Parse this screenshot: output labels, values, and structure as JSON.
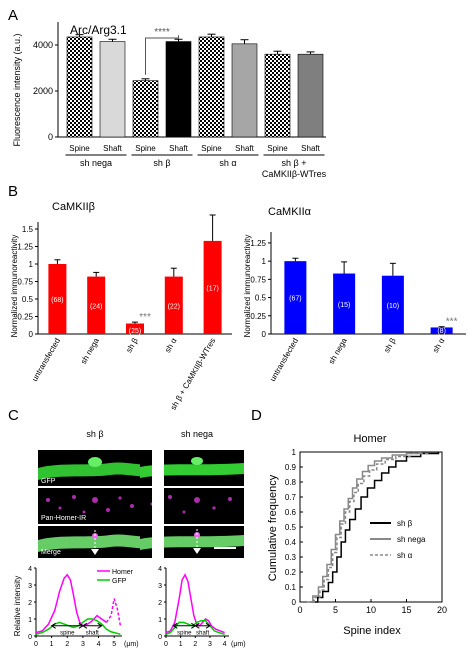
{
  "panel_letters": [
    "A",
    "B",
    "C",
    "D"
  ],
  "chart_data": [
    {
      "id": "A",
      "type": "bar",
      "title": "Arc/Arg3.1",
      "ylabel": "Fluorescence intensity (a.u.)",
      "ylim": [
        0,
        5000
      ],
      "yticks": [
        0,
        2000,
        4000
      ],
      "categories": [
        "Spine",
        "Shaft",
        "Spine",
        "Shaft",
        "Spine",
        "Shaft",
        "Spine",
        "Shaft"
      ],
      "values": [
        4350,
        4150,
        2450,
        4150,
        4350,
        4050,
        3600,
        3600
      ],
      "errors": [
        100,
        100,
        80,
        100,
        120,
        180,
        130,
        100
      ],
      "patterns": [
        "checker",
        "solid",
        "checker",
        "solid",
        "checker",
        "solid",
        "checker",
        "solid"
      ],
      "colors": [
        "#000000",
        "#d9d9d9",
        "#000000",
        "#000000",
        "#000000",
        "#a6a6a6",
        "#000000",
        "#7f7f7f"
      ],
      "groups": [
        {
          "label": "sh nega",
          "members": [
            0,
            1
          ]
        },
        {
          "label": "sh β",
          "members": [
            2,
            3
          ]
        },
        {
          "label": "sh α",
          "members": [
            4,
            5
          ]
        },
        {
          "label": "sh β +",
          "label2": "CaMKIIβ-WTres",
          "members": [
            6,
            7
          ]
        }
      ],
      "significance": {
        "label": "****",
        "between": [
          2,
          3
        ]
      }
    },
    {
      "id": "B-left",
      "type": "bar",
      "title": "CaMKIIβ",
      "ylabel": "Normalized immunoreactivity",
      "ylim": [
        0,
        1.6
      ],
      "yticks": [
        0,
        0.25,
        0.5,
        0.75,
        1,
        1.25,
        1.5
      ],
      "ytick_labels": [
        "0",
        "0.25",
        "0.5",
        "0.75",
        "1",
        "1.25",
        "1.5"
      ],
      "color": "#ff0000",
      "categories": [
        "untransfected",
        "sh nega",
        "sh β",
        "sh α",
        "sh β + CaMKIIβ-WTres"
      ],
      "values": [
        1.0,
        0.82,
        0.15,
        0.82,
        1.33
      ],
      "errors": [
        0.06,
        0.06,
        0.02,
        0.12,
        0.37
      ],
      "n": [
        "(68)",
        "(24)",
        "(25)",
        "(22)",
        "(17)"
      ],
      "significance": [
        {
          "index": 2,
          "label": "***"
        }
      ]
    },
    {
      "id": "B-right",
      "type": "bar",
      "title": "CaMKIIα",
      "ylabel": "Normalized immunoreactivity",
      "ylim": [
        0,
        1.4
      ],
      "yticks": [
        0,
        0.25,
        0.5,
        0.75,
        1,
        1.25
      ],
      "ytick_labels": [
        "0",
        "0.25",
        "0.5",
        "0.75",
        "1",
        "1.25"
      ],
      "color": "#0000ff",
      "categories": [
        "untransfected",
        "sh nega",
        "sh β",
        "sh α"
      ],
      "values": [
        1.0,
        0.83,
        0.8,
        0.09
      ],
      "errors": [
        0.04,
        0.16,
        0.17,
        0.01
      ],
      "n": [
        "(67)",
        "(15)",
        "(10)",
        "(8)"
      ],
      "significance": [
        {
          "index": 3,
          "label": "***"
        }
      ]
    },
    {
      "id": "C-left",
      "type": "line",
      "title": "sh β",
      "ylabel": "Relative intensity",
      "xlabel": "(μm)",
      "xlim": [
        0,
        5.5
      ],
      "ylim": [
        0,
        4
      ],
      "xticks": [
        0,
        1,
        2,
        3,
        4,
        5
      ],
      "yticks": [
        0,
        1,
        2,
        3,
        4
      ],
      "image_labels": [
        "GFP",
        "Pan-Homer-IR",
        "Merge"
      ],
      "legend": [
        "Homer",
        "GFP"
      ],
      "regions": [
        {
          "label": "spine",
          "x": [
            1.0,
            3.0
          ]
        },
        {
          "label": "shaft",
          "x": [
            3.0,
            4.2
          ]
        }
      ],
      "series": [
        {
          "name": "Homer",
          "color": "#ff00ff",
          "x": [
            0,
            0.4,
            0.8,
            1.2,
            1.5,
            1.8,
            2.0,
            2.2,
            2.4,
            2.6,
            2.8,
            3.0,
            3.3,
            3.6,
            3.9,
            4.2,
            4.5,
            4.8,
            5.0,
            5.2,
            5.4
          ],
          "y": [
            0.2,
            0.3,
            0.7,
            1.5,
            2.6,
            3.4,
            3.6,
            3.3,
            2.4,
            1.4,
            0.8,
            0.6,
            0.7,
            0.9,
            1.2,
            1.0,
            0.8,
            1.2,
            2.2,
            1.6,
            0.6
          ],
          "dashed_from_x": 4.5
        },
        {
          "name": "GFP",
          "color": "#00cc00",
          "x": [
            0,
            0.4,
            0.8,
            1.2,
            1.5,
            1.8,
            2.1,
            2.4,
            2.7,
            3.0,
            3.3,
            3.6,
            3.9,
            4.2,
            4.5,
            4.8,
            5.0,
            5.2,
            5.4
          ],
          "y": [
            0.1,
            0.2,
            0.4,
            0.7,
            0.8,
            0.7,
            0.6,
            0.5,
            0.6,
            0.8,
            1.0,
            1.0,
            0.9,
            0.7,
            0.4,
            0.25,
            0.2,
            0.15,
            0.1
          ]
        }
      ]
    },
    {
      "id": "C-right",
      "type": "line",
      "title": "sh nega",
      "xlabel": "(μm)",
      "xlim": [
        0,
        4.3
      ],
      "ylim": [
        0,
        4
      ],
      "xticks": [
        0,
        1,
        2,
        3,
        4
      ],
      "yticks": [
        0,
        1,
        2,
        3,
        4
      ],
      "regions": [
        {
          "label": "spine",
          "x": [
            0.5,
            2.0
          ]
        },
        {
          "label": "shaft",
          "x": [
            2.0,
            3.0
          ]
        }
      ],
      "series": [
        {
          "name": "Homer",
          "color": "#ff00ff",
          "x": [
            0,
            0.3,
            0.6,
            0.9,
            1.1,
            1.3,
            1.5,
            1.7,
            1.9,
            2.1,
            2.3,
            2.5,
            2.7,
            2.9,
            3.1,
            3.4,
            3.7,
            4.0
          ],
          "y": [
            0.2,
            0.3,
            0.8,
            2.2,
            3.3,
            3.6,
            3.2,
            2.2,
            1.2,
            0.7,
            0.6,
            0.8,
            1.0,
            0.9,
            0.6,
            0.4,
            0.3,
            0.2
          ]
        },
        {
          "name": "GFP",
          "color": "#00cc00",
          "x": [
            0,
            0.3,
            0.6,
            0.9,
            1.2,
            1.5,
            1.8,
            2.1,
            2.4,
            2.7,
            3.0,
            3.3,
            3.6,
            4.0
          ],
          "y": [
            0.1,
            0.2,
            0.5,
            0.8,
            0.8,
            0.7,
            0.6,
            0.8,
            0.9,
            0.9,
            0.6,
            0.3,
            0.2,
            0.1
          ]
        }
      ]
    },
    {
      "id": "D",
      "type": "line",
      "title": "Homer",
      "xlabel": "Spine index",
      "ylabel": "Cumulative frequency",
      "xlim": [
        0,
        20
      ],
      "ylim": [
        0,
        1
      ],
      "xticks": [
        0,
        5,
        10,
        15,
        20
      ],
      "yticks": [
        0,
        0.1,
        0.2,
        0.3,
        0.4,
        0.5,
        0.6,
        0.7,
        0.8,
        0.9,
        1
      ],
      "ytick_labels": [
        "0",
        "0.1",
        "0.2",
        "0.3",
        "0.4",
        "0.5",
        "0.6",
        "0.7",
        "0.8",
        "0.9",
        "1"
      ],
      "series": [
        {
          "name": "sh β",
          "color": "#000000",
          "style": "solid",
          "x": [
            1.5,
            2.5,
            3.2,
            4.0,
            4.6,
            5.2,
            5.8,
            6.4,
            7.0,
            7.8,
            8.6,
            9.5,
            10.5,
            11.5,
            12.5,
            13.5,
            15.0,
            17.0,
            19.5
          ],
          "y": [
            0,
            0.03,
            0.07,
            0.13,
            0.2,
            0.3,
            0.4,
            0.48,
            0.55,
            0.62,
            0.7,
            0.76,
            0.81,
            0.86,
            0.9,
            0.94,
            0.97,
            0.99,
            1.0
          ]
        },
        {
          "name": "sh nega",
          "color": "#888888",
          "style": "solid",
          "x": [
            1.0,
            1.8,
            2.6,
            3.2,
            3.8,
            4.4,
            5.0,
            5.6,
            6.2,
            6.8,
            7.4,
            8.0,
            8.8,
            9.6,
            10.5,
            11.5,
            13.0,
            15.0,
            17.0
          ],
          "y": [
            0,
            0.04,
            0.1,
            0.17,
            0.25,
            0.35,
            0.45,
            0.54,
            0.62,
            0.69,
            0.76,
            0.82,
            0.87,
            0.91,
            0.94,
            0.96,
            0.98,
            0.99,
            1.0
          ]
        },
        {
          "name": "sh α",
          "color": "#888888",
          "style": "dashed",
          "x": [
            1.2,
            2.0,
            2.8,
            3.4,
            4.0,
            4.6,
            5.2,
            5.8,
            6.4,
            7.0,
            7.6,
            8.2,
            9.0,
            9.8,
            10.8,
            12.0,
            13.5,
            15.5,
            18.0
          ],
          "y": [
            0,
            0.03,
            0.08,
            0.15,
            0.23,
            0.33,
            0.43,
            0.52,
            0.6,
            0.67,
            0.73,
            0.79,
            0.84,
            0.88,
            0.92,
            0.95,
            0.97,
            0.99,
            1.0
          ]
        }
      ]
    }
  ]
}
